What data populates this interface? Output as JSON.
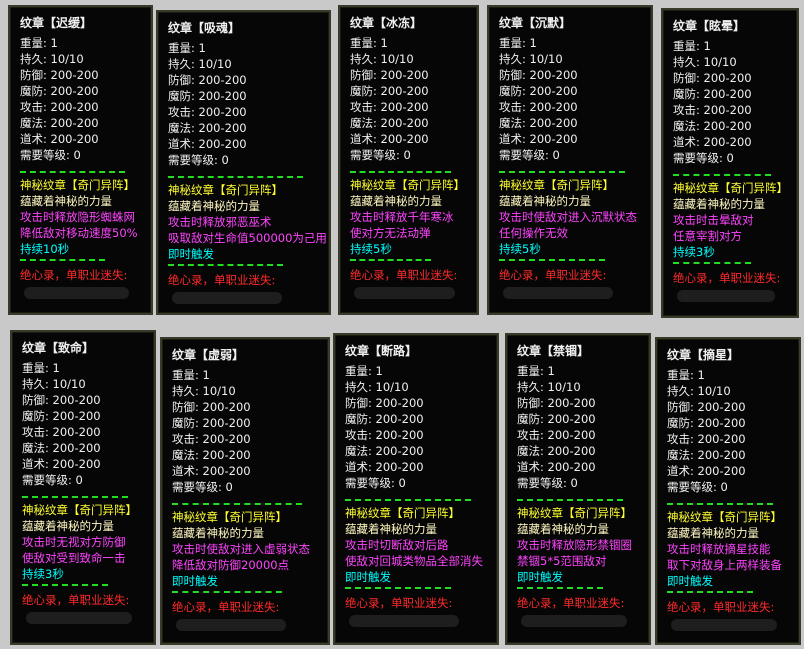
{
  "cards": [
    {
      "title": "纹章【迟缓】",
      "stats": [
        "重量: 1",
        "持久: 10/10",
        "防御: 200-200",
        "魔防: 200-200",
        "攻击: 200-200",
        "魔法: 200-200",
        "道术: 200-200",
        "需要等级: 0"
      ],
      "set": "神秘纹章【奇门异阵】",
      "lore": "蕴藏着神秘的力量",
      "effects": [
        "攻击时释放隐形蜘蛛网",
        "降低敌对移动速度50%"
      ],
      "trigger": "持续10秒",
      "footer": "绝心录，单职业迷失:"
    },
    {
      "title": "纹章【吸魂】",
      "stats": [
        "重量: 1",
        "持久: 10/10",
        "防御: 200-200",
        "魔防: 200-200",
        "攻击: 200-200",
        "魔法: 200-200",
        "道术: 200-200",
        "需要等级: 0"
      ],
      "set": "神秘纹章【奇门异阵】",
      "lore": "蕴藏着神秘的力量",
      "effects": [
        "攻击时释放邪恶巫术",
        "吸取敌对生命值500000为己用"
      ],
      "trigger": "即时触发",
      "footer": "绝心录，单职业迷失:"
    },
    {
      "title": "纹章【冰冻】",
      "stats": [
        "重量: 1",
        "持久: 10/10",
        "防御: 200-200",
        "魔防: 200-200",
        "攻击: 200-200",
        "魔法: 200-200",
        "道术: 200-200",
        "需要等级: 0"
      ],
      "set": "神秘纹章【奇门异阵】",
      "lore": "蕴藏着神秘的力量",
      "effects": [
        "攻击时释放千年寒冰",
        "使对方无法动弹"
      ],
      "trigger": "持续5秒",
      "footer": "绝心录，单职业迷失:"
    },
    {
      "title": "纹章【沉默】",
      "stats": [
        "重量: 1",
        "持久: 10/10",
        "防御: 200-200",
        "魔防: 200-200",
        "攻击: 200-200",
        "魔法: 200-200",
        "道术: 200-200",
        "需要等级: 0"
      ],
      "set": "神秘纹章【奇门异阵】",
      "lore": "蕴藏着神秘的力量",
      "effects": [
        "攻击时使敌对进入沉默状态",
        "任何操作无效"
      ],
      "trigger": "持续5秒",
      "footer": "绝心录，单职业迷失:"
    },
    {
      "title": "纹章【眩晕】",
      "stats": [
        "重量: 1",
        "持久: 10/10",
        "防御: 200-200",
        "魔防: 200-200",
        "攻击: 200-200",
        "魔法: 200-200",
        "道术: 200-200",
        "需要等级: 0"
      ],
      "set": "神秘纹章【奇门异阵】",
      "lore": "蕴藏着神秘的力量",
      "effects": [
        "攻击时击晕敌对",
        "任意宰割对方"
      ],
      "trigger": "持续3秒",
      "footer": "绝心录，单职业迷失:"
    },
    {
      "title": "纹章【致命】",
      "stats": [
        "重量: 1",
        "持久: 10/10",
        "防御: 200-200",
        "魔防: 200-200",
        "攻击: 200-200",
        "魔法: 200-200",
        "道术: 200-200",
        "需要等级: 0"
      ],
      "set": "神秘纹章【奇门异阵】",
      "lore": "蕴藏着神秘的力量",
      "effects": [
        "攻击时无视对方防御",
        "使敌对受到致命一击"
      ],
      "trigger": "持续3秒",
      "footer": "绝心录，单职业迷失:"
    },
    {
      "title": "纹章【虚弱】",
      "stats": [
        "重量: 1",
        "持久: 10/10",
        "防御: 200-200",
        "魔防: 200-200",
        "攻击: 200-200",
        "魔法: 200-200",
        "道术: 200-200",
        "需要等级: 0"
      ],
      "set": "神秘纹章【奇门异阵】",
      "lore": "蕴藏着神秘的力量",
      "effects": [
        "攻击时使敌对进入虚弱状态",
        "降低敌对防御20000点"
      ],
      "trigger": "即时触发",
      "footer": "绝心录，单职业迷失:"
    },
    {
      "title": "纹章【断路】",
      "stats": [
        "重量: 1",
        "持久: 10/10",
        "防御: 200-200",
        "魔防: 200-200",
        "攻击: 200-200",
        "魔法: 200-200",
        "道术: 200-200",
        "需要等级: 0"
      ],
      "set": "神秘纹章【奇门异阵】",
      "lore": "蕴藏着神秘的力量",
      "effects": [
        "攻击时切断敌对后路",
        "使敌对回城类物品全部消失"
      ],
      "trigger": "即时触发",
      "footer": "绝心录，单职业迷失:"
    },
    {
      "title": "纹章【禁锢】",
      "stats": [
        "重量: 1",
        "持久: 10/10",
        "防御: 200-200",
        "魔防: 200-200",
        "攻击: 200-200",
        "魔法: 200-200",
        "道术: 200-200",
        "需要等级: 0"
      ],
      "set": "神秘纹章【奇门异阵】",
      "lore": "蕴藏着神秘的力量",
      "effects": [
        "攻击时释放隐形禁锢圈",
        "禁锢5*5范围敌对"
      ],
      "trigger": "即时触发",
      "footer": "绝心录，单职业迷失:"
    },
    {
      "title": "纹章【摘星】",
      "stats": [
        "重量: 1",
        "持久: 10/10",
        "防御: 200-200",
        "魔防: 200-200",
        "攻击: 200-200",
        "魔法: 200-200",
        "道术: 200-200",
        "需要等级: 0"
      ],
      "set": "神秘纹章【奇门异阵】",
      "lore": "蕴藏着神秘的力量",
      "effects": [
        "攻击时释放摘星技能",
        "取下对敌身上两样装备"
      ],
      "trigger": "即时触发",
      "footer": "绝心录，单职业迷失:"
    }
  ]
}
